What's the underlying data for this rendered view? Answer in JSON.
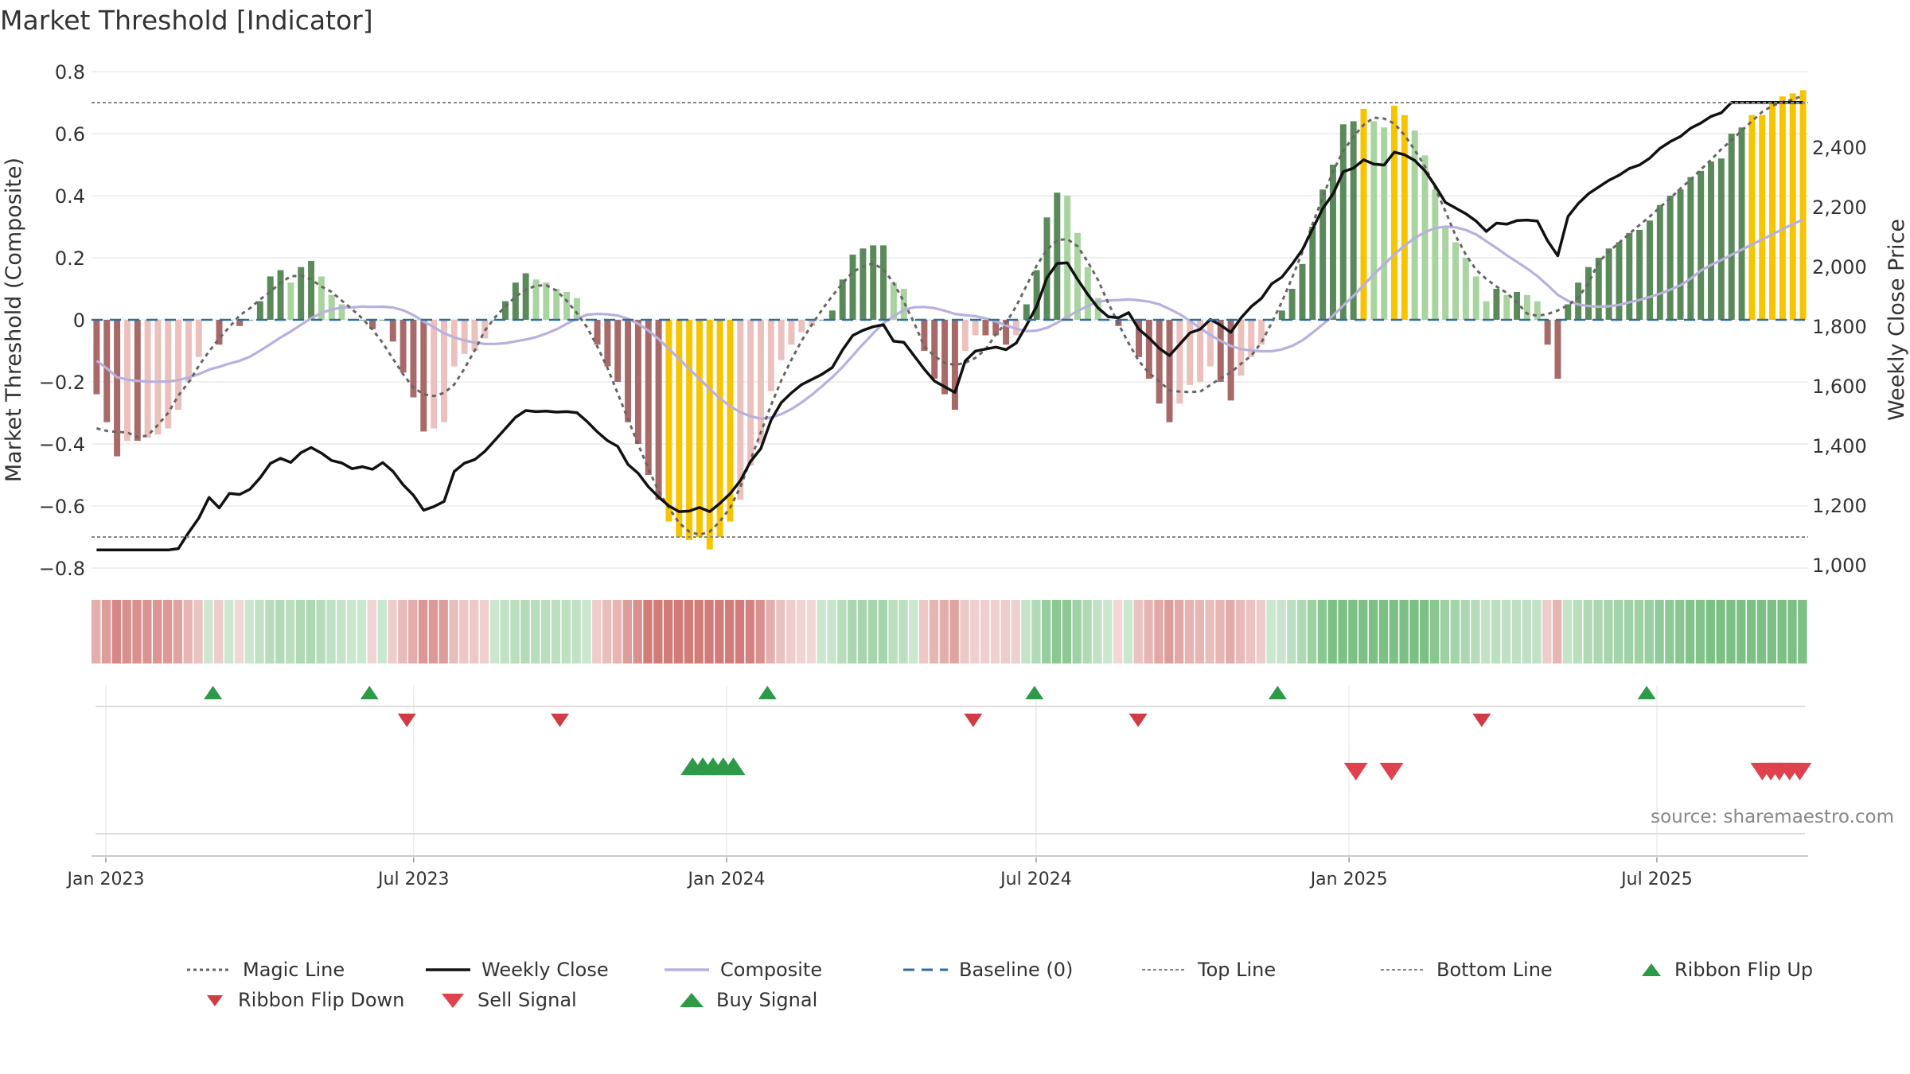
{
  "chart_title": "Market Threshold [Indicator]",
  "source": "source: sharemaestro.com",
  "colors": {
    "pos_dark": "#5a8a5a",
    "pos_light": "#a9d4a0",
    "neg_dark": "#a86a68",
    "neg_light": "#ecc1bd",
    "extreme": "#f7c500",
    "composite": "#b8b0de",
    "weekly_close": "#111111",
    "magic_line": "#666666",
    "baseline": "#2f6d9e",
    "buy": "#2e9a48",
    "sell": "#d13b45"
  },
  "chart_data": {
    "type": "bar",
    "ylabel": "Market Threshold (Composite)",
    "y2label": "Weekly Close Price",
    "ylim": [
      -0.8,
      0.8
    ],
    "y2lim": [
      1000,
      2600
    ],
    "yticks": [
      "0.8",
      "0.6",
      "0.4",
      "0.2",
      "0",
      "−0.2",
      "−0.4",
      "−0.6",
      "−0.8"
    ],
    "y2ticks": [
      "2,400",
      "2,200",
      "2,000",
      "1,800",
      "1,600",
      "1,400",
      "1,200",
      "1,000"
    ],
    "xticks": [
      "Jan 2023",
      "Jul 2023",
      "Jan 2024",
      "Jul 2024",
      "Jan 2025",
      "Jul 2025"
    ],
    "top_line": 0.7,
    "bottom_line": -0.7,
    "legend": [
      "Magic Line",
      "Weekly Close",
      "Composite",
      "Baseline (0)",
      "Top Line",
      "Bottom Line",
      "Ribbon Flip Up",
      "Ribbon Flip Down",
      "Sell Signal",
      "Buy Signal"
    ],
    "composite_bars": [
      -0.24,
      -0.33,
      -0.44,
      -0.39,
      -0.39,
      -0.38,
      -0.37,
      -0.35,
      -0.29,
      -0.2,
      -0.12,
      0,
      -0.08,
      0,
      -0.02,
      0,
      0.06,
      0.14,
      0.16,
      0.12,
      0.17,
      0.19,
      0.14,
      0.08,
      0.05,
      0,
      0,
      -0.03,
      0,
      -0.07,
      -0.17,
      -0.25,
      -0.36,
      -0.35,
      -0.33,
      -0.15,
      -0.11,
      -0.1,
      -0.06,
      0,
      0.06,
      0.12,
      0.15,
      0.13,
      0.12,
      0.1,
      0.09,
      0.07,
      0,
      -0.08,
      -0.15,
      -0.2,
      -0.33,
      -0.4,
      -0.5,
      -0.58,
      -0.65,
      -0.7,
      -0.71,
      -0.7,
      -0.74,
      -0.7,
      -0.65,
      -0.58,
      -0.47,
      -0.4,
      -0.23,
      -0.13,
      -0.08,
      -0.04,
      -0.02,
      0,
      0.03,
      0.13,
      0.21,
      0.23,
      0.24,
      0.24,
      0.12,
      0.1,
      0,
      -0.1,
      -0.19,
      -0.24,
      -0.29,
      -0.1,
      -0.05,
      -0.05,
      -0.05,
      -0.08,
      -0.05,
      0.05,
      0.16,
      0.33,
      0.41,
      0.4,
      0.28,
      0.17,
      0.07,
      0,
      -0.02,
      0,
      -0.12,
      -0.19,
      -0.27,
      -0.33,
      -0.27,
      -0.21,
      -0.2,
      -0.15,
      -0.2,
      -0.26,
      -0.18,
      -0.12,
      -0.08,
      0,
      0.03,
      0.1,
      0.18,
      0.3,
      0.42,
      0.5,
      0.63,
      0.64,
      0.68,
      0.64,
      0.62,
      0.69,
      0.66,
      0.61,
      0.53,
      0.42,
      0.3,
      0.25,
      0.2,
      0.14,
      0.06,
      0.1,
      0.08,
      0.09,
      0.08,
      0.06,
      -0.08,
      -0.19,
      0.05,
      0.12,
      0.17,
      0.2,
      0.23,
      0.25,
      0.28,
      0.29,
      0.32,
      0.37,
      0.4,
      0.42,
      0.46,
      0.48,
      0.51,
      0.52,
      0.6,
      0.62,
      0.66,
      0.66,
      0.7,
      0.72,
      0.73,
      0.74
    ],
    "ribbon_flip_up_x": [
      "2023-03-05",
      "2023-06-05",
      "2024-01-25",
      "2024-06-30",
      "2024-11-20",
      "2025-06-25"
    ],
    "ribbon_flip_down_x": [
      "2023-06-27",
      "2023-09-25",
      "2024-05-25",
      "2024-08-30",
      "2025-03-20"
    ],
    "buy_signal_x": [
      "2023-12-12",
      "2023-12-18",
      "2023-12-24",
      "2023-12-30",
      "2024-01-05"
    ],
    "sell_signal_x": [
      "2025-01-05",
      "2025-01-26",
      "2025-09-01",
      "2025-09-06",
      "2025-09-11",
      "2025-09-17",
      "2025-09-23"
    ]
  }
}
